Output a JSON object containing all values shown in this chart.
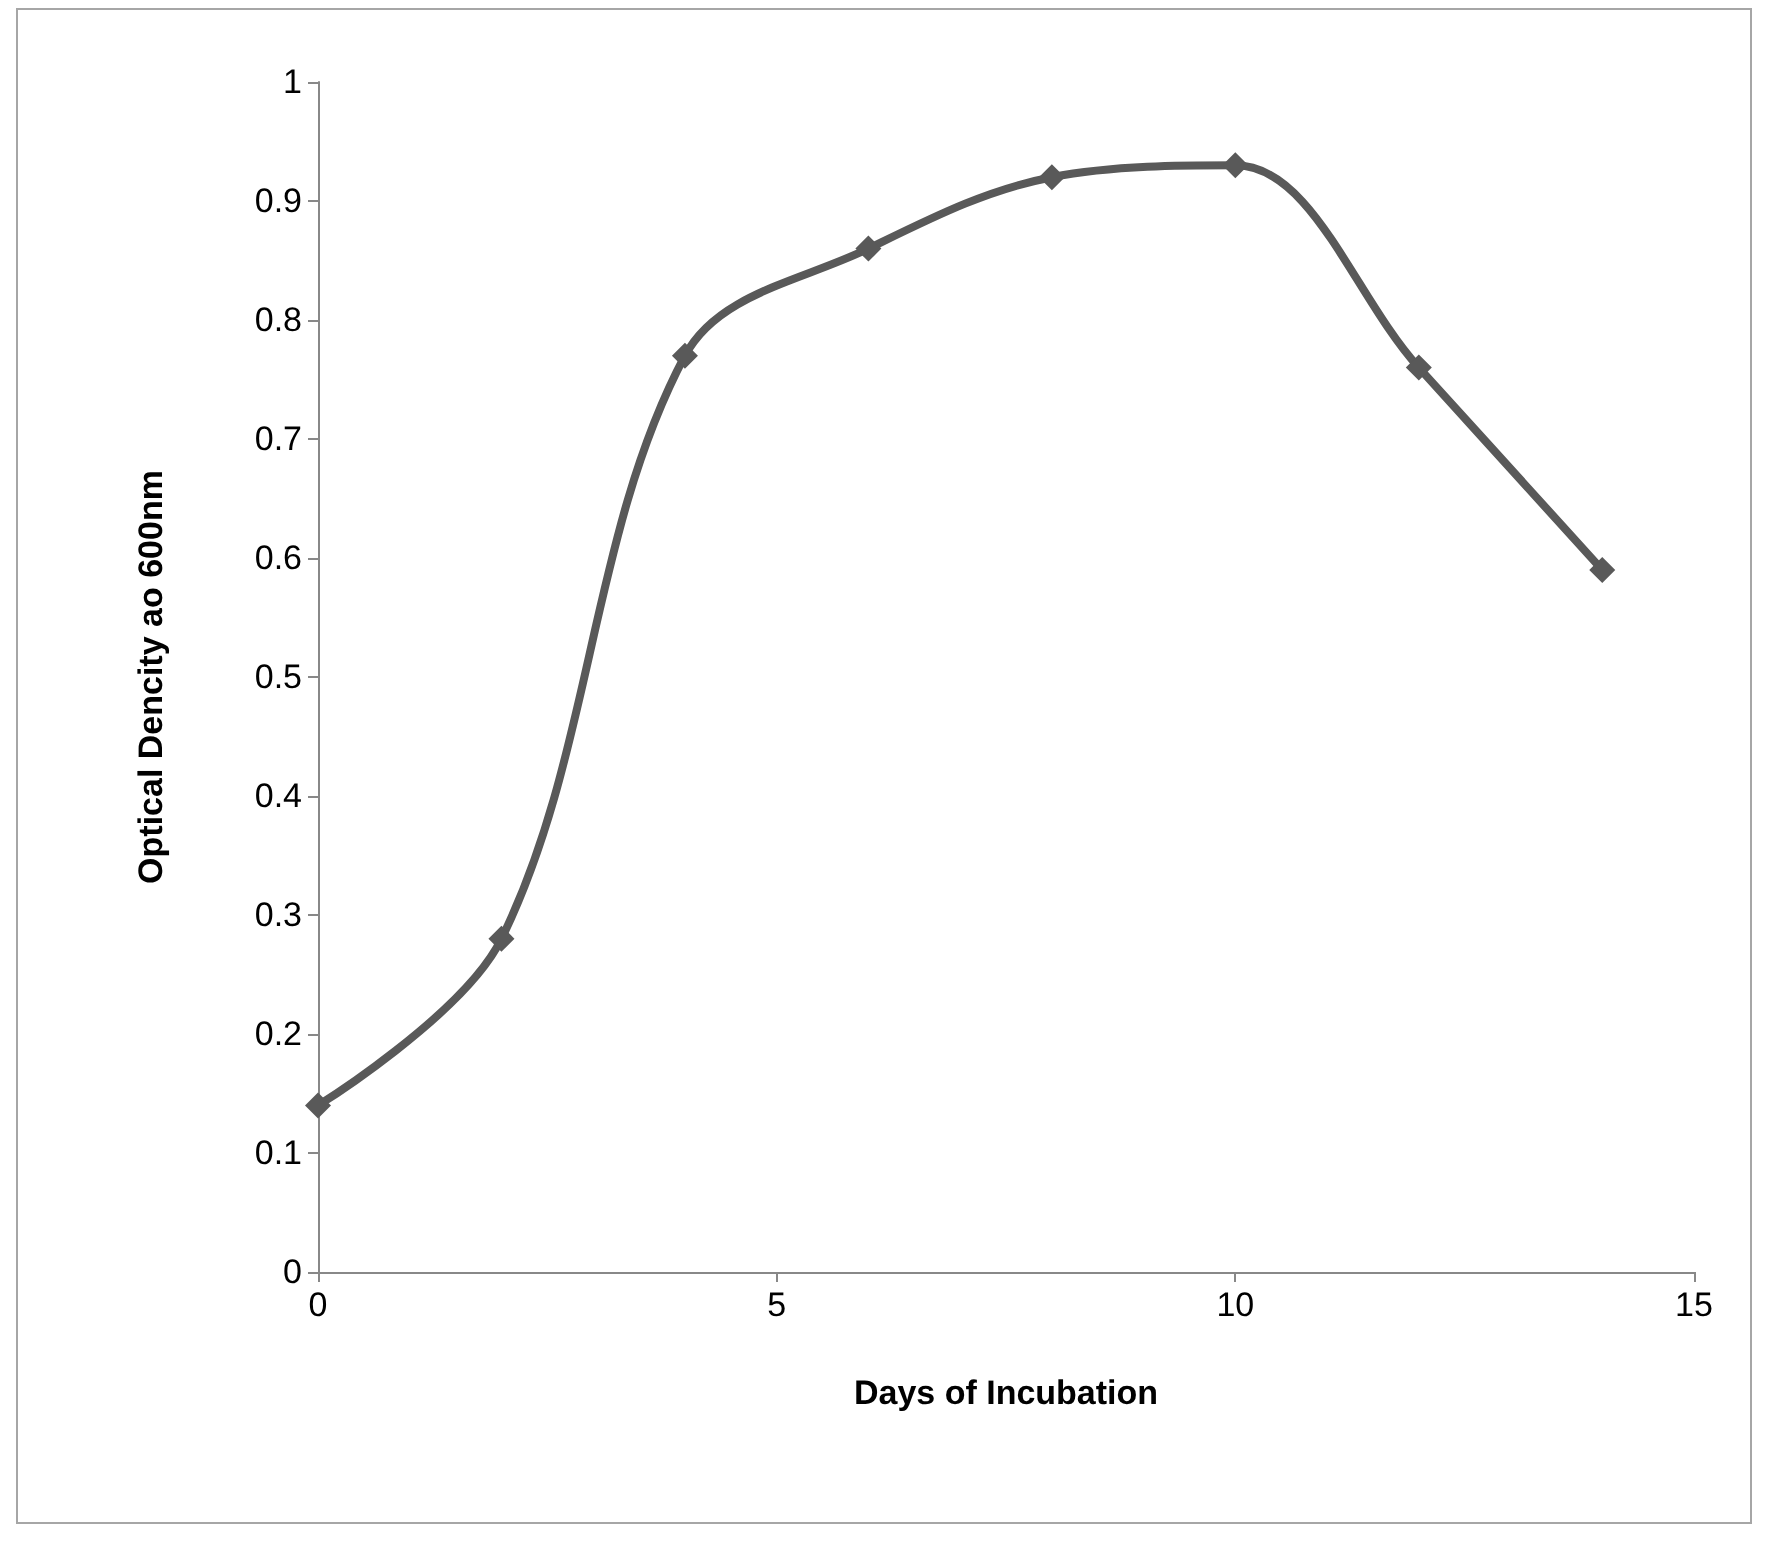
{
  "chart_data": {
    "type": "line",
    "xlabel": "Days of Incubation",
    "ylabel": "Optical Dencity ao 600nm",
    "x": [
      0,
      2,
      4,
      6,
      8,
      10,
      12,
      14
    ],
    "series": [
      {
        "color": "#595959",
        "values": [
          0.14,
          0.28,
          0.77,
          0.86,
          0.92,
          0.93,
          0.76,
          0.59
        ]
      }
    ],
    "xlim": [
      0,
      15
    ],
    "xticks": [
      0,
      5,
      10,
      15
    ],
    "ylim": [
      0,
      1
    ],
    "yticks": [
      0,
      0.1,
      0.2,
      0.3,
      0.4,
      0.5,
      0.6,
      0.7,
      0.8,
      0.9,
      1
    ],
    "grid": false,
    "marker": "diamond",
    "line_style": "solid"
  }
}
